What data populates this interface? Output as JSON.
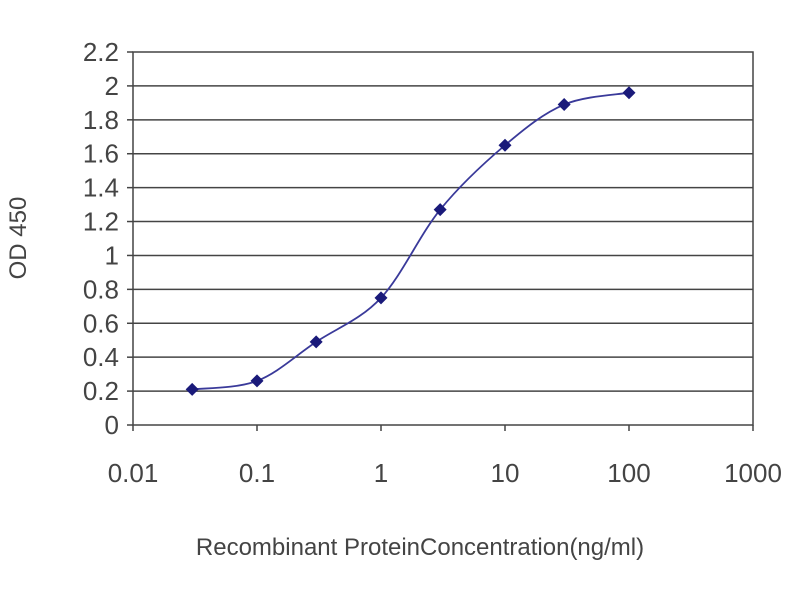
{
  "chart_data": {
    "type": "line",
    "xlabel": "Recombinant ProteinConcentration(ng/ml)",
    "ylabel": "OD 450",
    "xscale": "log",
    "xlim": [
      0.01,
      1000
    ],
    "ylim": [
      0,
      2.2
    ],
    "x_ticks": [
      0.01,
      0.1,
      1,
      10,
      100,
      1000
    ],
    "x_tick_labels": [
      "0.01",
      "0.1",
      "1",
      "10",
      "100",
      "1000"
    ],
    "y_ticks": [
      0,
      0.2,
      0.4,
      0.6,
      0.8,
      1,
      1.2,
      1.4,
      1.6,
      1.8,
      2,
      2.2
    ],
    "y_tick_labels": [
      "0",
      "0.2",
      "0.4",
      "0.6",
      "0.8",
      "1",
      "1.2",
      "1.4",
      "1.6",
      "1.8",
      "2",
      "2.2"
    ],
    "grid": "horizontal",
    "series": [
      {
        "color": "#1a1a7a",
        "x": [
          0.03,
          0.1,
          0.3,
          1,
          3,
          10,
          30,
          100
        ],
        "y": [
          0.21,
          0.26,
          0.49,
          0.75,
          1.27,
          1.65,
          1.89,
          1.96
        ]
      }
    ]
  }
}
